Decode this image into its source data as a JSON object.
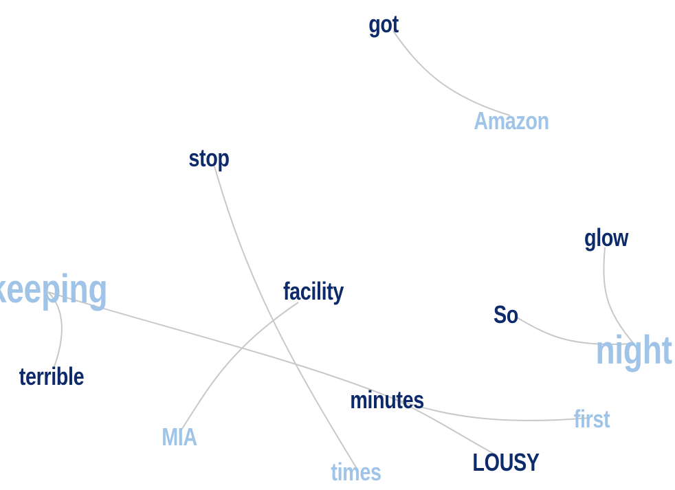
{
  "colors": {
    "dark": "#0d2a6a",
    "light": "#9fc4e8",
    "edge": "#c8c8c8"
  },
  "words": [
    {
      "id": "got",
      "text": "got",
      "tone": "dark"
    },
    {
      "id": "amazon",
      "text": "Amazon",
      "tone": "light"
    },
    {
      "id": "stop",
      "text": "stop",
      "tone": "dark"
    },
    {
      "id": "glow",
      "text": "glow",
      "tone": "dark"
    },
    {
      "id": "keeping",
      "text": "keeping",
      "tone": "light"
    },
    {
      "id": "facility",
      "text": "facility",
      "tone": "dark"
    },
    {
      "id": "so",
      "text": "So",
      "tone": "dark"
    },
    {
      "id": "night",
      "text": "night",
      "tone": "light"
    },
    {
      "id": "terrible",
      "text": "terrible",
      "tone": "dark"
    },
    {
      "id": "minutes",
      "text": "minutes",
      "tone": "dark"
    },
    {
      "id": "first",
      "text": "first",
      "tone": "light"
    },
    {
      "id": "mia",
      "text": "MIA",
      "tone": "light"
    },
    {
      "id": "lousy",
      "text": "LOUSY",
      "tone": "dark"
    },
    {
      "id": "times",
      "text": "times",
      "tone": "light"
    }
  ],
  "edges": [
    [
      "got",
      "amazon"
    ],
    [
      "stop",
      "times"
    ],
    [
      "glow",
      "night"
    ],
    [
      "so",
      "night"
    ],
    [
      "keeping",
      "terrible"
    ],
    [
      "keeping",
      "minutes"
    ],
    [
      "facility",
      "mia"
    ],
    [
      "minutes",
      "first"
    ],
    [
      "minutes",
      "lousy"
    ]
  ]
}
